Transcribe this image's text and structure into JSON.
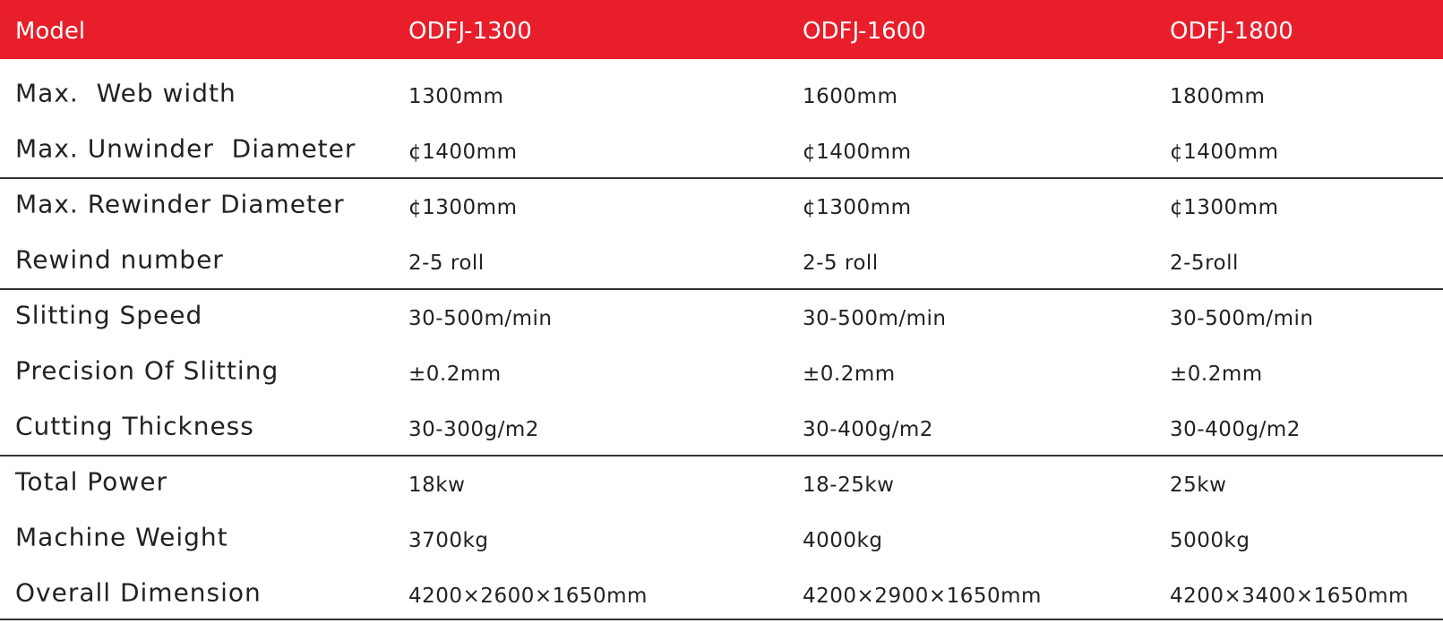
{
  "table": {
    "header": [
      "Model",
      "ODFJ-1300",
      "ODFJ-1600",
      "ODFJ-1800"
    ],
    "rows": [
      [
        "Max.  Web width",
        "1300mm",
        "1600mm",
        "1800mm"
      ],
      [
        "Max. Unwinder  Diameter",
        "¢1400mm",
        "¢1400mm",
        "¢1400mm"
      ],
      [
        "Max. Rewinder Diameter",
        "¢1300mm",
        "¢1300mm",
        "¢1300mm"
      ],
      [
        "Rewind number",
        "2-5 roll",
        "2-5 roll",
        "2-5roll"
      ],
      [
        "Slitting Speed",
        "30-500m/min",
        "30-500m/min",
        "30-500m/min"
      ],
      [
        "Precision Of Slitting",
        "±0.2mm",
        "±0.2mm",
        "±0.2mm"
      ],
      [
        "Cutting Thickness",
        "30-300g/m2",
        "30-400g/m2",
        "30-400g/m2"
      ],
      [
        "Total Power",
        "18kw",
        "18-25kw",
        "25kw"
      ],
      [
        "Machine Weight",
        "3700kg",
        "4000kg",
        "5000kg"
      ],
      [
        "Overall Dimension",
        "4200×2600×1650mm",
        "4200×2900×1650mm",
        "4200×3400×1650mm"
      ]
    ]
  }
}
